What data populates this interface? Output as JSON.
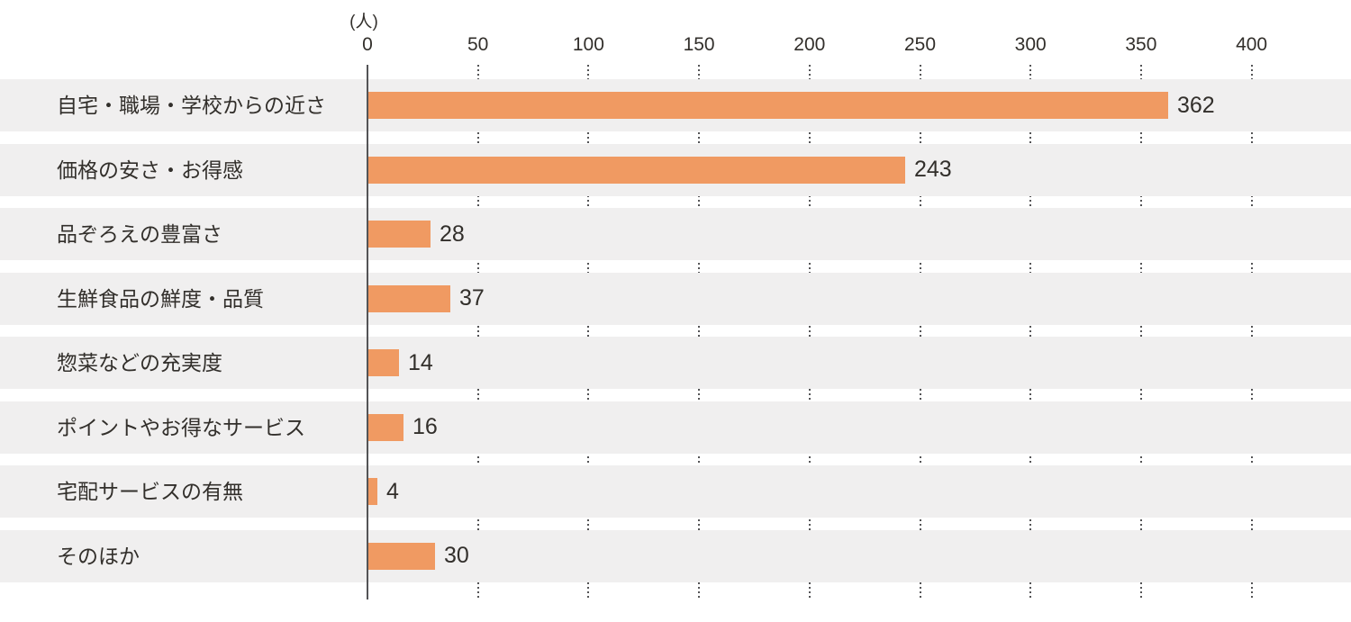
{
  "chart_data": {
    "type": "bar",
    "orientation": "horizontal",
    "title": "",
    "unit_label": "(人)",
    "xlabel": "",
    "ylabel": "",
    "xlim": [
      0,
      400
    ],
    "x_ticks": [
      0,
      50,
      100,
      150,
      200,
      250,
      300,
      350,
      400
    ],
    "grid": "dotted-vertical",
    "categories": [
      "自宅・職場・学校からの近さ",
      "価格の安さ・お得感",
      "品ぞろえの豊富さ",
      "生鮮食品の鮮度・品質",
      "惣菜などの充実度",
      "ポイントやお得なサービス",
      "宅配サービスの有無",
      "そのほか"
    ],
    "values": [
      362,
      243,
      28,
      37,
      14,
      16,
      4,
      30
    ],
    "bar_color": "#F09A62",
    "row_bg_color": "#F0EFEF",
    "text_color": "#322F2B",
    "axis_color": "#545456"
  }
}
